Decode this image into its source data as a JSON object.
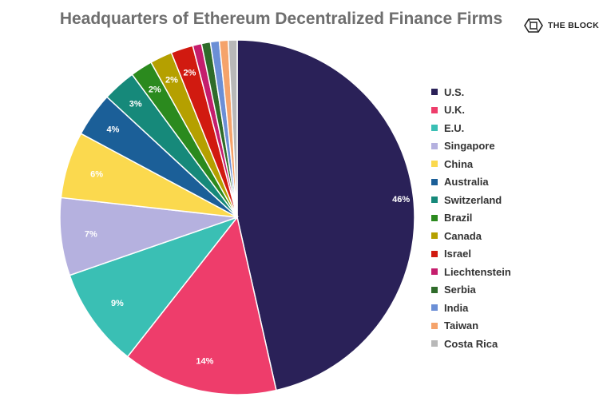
{
  "header": {
    "title": "Headquarters of Ethereum Decentralized Finance Firms",
    "brand": "THE BLOCK"
  },
  "chart_data": {
    "type": "pie",
    "title": "Headquarters of Ethereum Decentralized Finance Firms",
    "legend_position": "right",
    "slices": [
      {
        "label": "U.S.",
        "value": 46,
        "value_label": "46%",
        "color": "#2a2158"
      },
      {
        "label": "U.K.",
        "value": 14,
        "value_label": "14%",
        "color": "#ee3d6b"
      },
      {
        "label": "E.U.",
        "value": 9,
        "value_label": "9%",
        "color": "#3abfb4"
      },
      {
        "label": "Singapore",
        "value": 7,
        "value_label": "7%",
        "color": "#b5b1df"
      },
      {
        "label": "China",
        "value": 6,
        "value_label": "6%",
        "color": "#fbd94e"
      },
      {
        "label": "Australia",
        "value": 4,
        "value_label": "4%",
        "color": "#1b5f98"
      },
      {
        "label": "Switzerland",
        "value": 3,
        "value_label": "3%",
        "color": "#16897a"
      },
      {
        "label": "Brazil",
        "value": 2,
        "value_label": "2%",
        "color": "#2b8a1e"
      },
      {
        "label": "Canada",
        "value": 2,
        "value_label": "2%",
        "color": "#b5a000"
      },
      {
        "label": "Israel",
        "value": 2,
        "value_label": "2%",
        "color": "#d11a10"
      },
      {
        "label": "Liechtenstein",
        "value": 0.8,
        "value_label": "",
        "color": "#c51d6d"
      },
      {
        "label": "Serbia",
        "value": 0.8,
        "value_label": "",
        "color": "#2f6b2a"
      },
      {
        "label": "India",
        "value": 0.8,
        "value_label": "",
        "color": "#6b8fd6"
      },
      {
        "label": "Taiwan",
        "value": 0.8,
        "value_label": "",
        "color": "#f5a36b"
      },
      {
        "label": "Costa Rica",
        "value": 0.8,
        "value_label": "",
        "color": "#b8b8b8"
      }
    ]
  }
}
